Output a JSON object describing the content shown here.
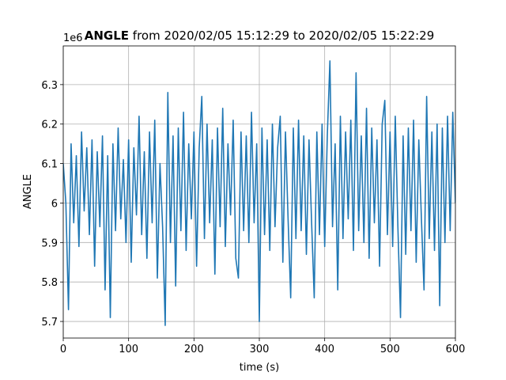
{
  "chart_data": {
    "type": "line",
    "title": "ANGLE",
    "subtitle": "from 2020/02/05 15:12:29 to 2020/02/05 15:22:29",
    "x_label": "time (s)",
    "y_label": "ANGLE",
    "y_offset_label": "1e6",
    "xlim": [
      0,
      600
    ],
    "xticks": [
      0,
      100,
      200,
      300,
      400,
      500,
      600
    ],
    "ylim": [
      5.658,
      6.398
    ],
    "yticks": [
      5.7,
      5.8,
      5.9,
      6.0,
      6.1,
      6.2,
      6.3
    ],
    "grid": true,
    "x": [
      0,
      4,
      8,
      12,
      16,
      20,
      24,
      28,
      32,
      36,
      40,
      44,
      48,
      52,
      56,
      60,
      64,
      68,
      72,
      76,
      80,
      84,
      88,
      92,
      96,
      100,
      104,
      108,
      112,
      116,
      120,
      124,
      128,
      132,
      136,
      140,
      144,
      148,
      152,
      156,
      160,
      164,
      168,
      172,
      176,
      180,
      184,
      188,
      192,
      196,
      200,
      204,
      208,
      212,
      216,
      220,
      224,
      228,
      232,
      236,
      240,
      244,
      248,
      252,
      256,
      260,
      264,
      268,
      272,
      276,
      280,
      284,
      288,
      292,
      296,
      300,
      304,
      308,
      312,
      316,
      320,
      324,
      328,
      332,
      336,
      340,
      344,
      348,
      352,
      356,
      360,
      364,
      368,
      372,
      376,
      380,
      384,
      388,
      392,
      396,
      400,
      404,
      408,
      412,
      416,
      420,
      424,
      428,
      432,
      436,
      440,
      444,
      448,
      452,
      456,
      460,
      464,
      468,
      472,
      476,
      480,
      484,
      488,
      492,
      496,
      500,
      504,
      508,
      512,
      516,
      520,
      524,
      528,
      532,
      536,
      540,
      544,
      548,
      552,
      556,
      560,
      564,
      568,
      572,
      576,
      580,
      584,
      588,
      592,
      596,
      600
    ],
    "series": [
      {
        "name": "ANGLE",
        "color": "#1f77b4",
        "values": [
          6.1,
          6.0,
          5.73,
          6.15,
          5.95,
          6.12,
          5.89,
          6.18,
          5.98,
          6.14,
          5.92,
          6.16,
          5.84,
          6.13,
          5.94,
          6.17,
          5.78,
          6.12,
          5.71,
          6.15,
          5.93,
          6.19,
          5.96,
          6.11,
          5.9,
          6.16,
          5.85,
          6.14,
          5.97,
          6.22,
          5.92,
          6.13,
          5.86,
          6.18,
          5.95,
          6.21,
          5.81,
          6.1,
          5.94,
          5.69,
          6.28,
          5.9,
          6.17,
          5.79,
          6.19,
          5.93,
          6.23,
          5.88,
          6.15,
          5.96,
          6.18,
          5.84,
          6.14,
          6.27,
          5.91,
          6.2,
          5.95,
          6.16,
          5.82,
          6.19,
          5.94,
          6.24,
          5.89,
          6.15,
          5.97,
          6.21,
          5.86,
          5.81,
          6.18,
          5.93,
          6.17,
          5.9,
          6.23,
          5.95,
          6.15,
          5.7,
          6.19,
          5.92,
          6.16,
          5.88,
          6.2,
          5.94,
          6.14,
          6.22,
          5.85,
          6.18,
          5.96,
          5.76,
          6.19,
          5.91,
          6.21,
          5.93,
          6.17,
          5.87,
          6.16,
          5.95,
          5.76,
          6.18,
          5.92,
          6.2,
          5.89,
          6.17,
          6.36,
          5.94,
          6.15,
          5.78,
          6.22,
          5.91,
          6.18,
          5.96,
          6.21,
          5.88,
          6.33,
          5.93,
          6.17,
          5.9,
          6.24,
          5.86,
          6.19,
          5.95,
          6.16,
          5.84,
          6.2,
          6.26,
          5.92,
          6.18,
          5.89,
          6.22,
          5.94,
          5.71,
          6.17,
          5.87,
          6.19,
          5.93,
          6.21,
          5.85,
          6.16,
          5.96,
          5.78,
          6.27,
          5.91,
          6.18,
          5.88,
          6.2,
          5.74,
          6.19,
          5.9,
          6.22,
          5.93,
          6.23,
          6.0
        ]
      }
    ]
  }
}
